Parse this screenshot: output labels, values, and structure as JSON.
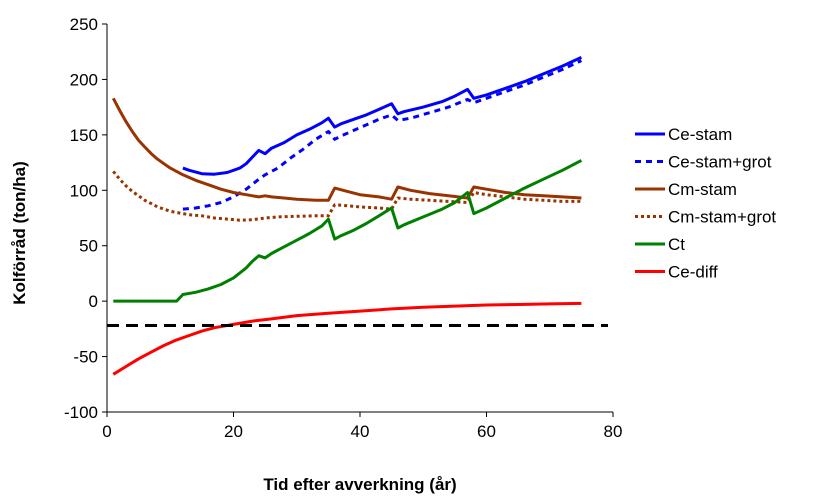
{
  "chart_data": {
    "type": "line",
    "title": "",
    "xlabel": "Tid efter avverkning (år)",
    "ylabel": "Kolförråd (ton/ha)",
    "xlim": [
      0,
      80
    ],
    "ylim": [
      -100,
      250
    ],
    "xticks": [
      "0",
      "20",
      "40",
      "60",
      "80"
    ],
    "yticks": [
      "250",
      "200",
      "150",
      "100",
      "50",
      "0",
      "-50",
      "-100"
    ],
    "xtick_values": [
      0,
      20,
      40,
      60,
      80
    ],
    "ytick_values": [
      250,
      200,
      150,
      100,
      50,
      0,
      -50,
      -100
    ],
    "grid": false,
    "legend_position": "right",
    "reference_line": {
      "y": -22,
      "color": "#000000",
      "style": "dashed"
    },
    "series": [
      {
        "name": "Ce-stam",
        "color": "#0000ff",
        "dash": "solid",
        "points": [
          [
            12,
            120
          ],
          [
            13,
            118
          ],
          [
            15,
            115
          ],
          [
            17,
            114.5
          ],
          [
            19,
            116
          ],
          [
            21,
            120
          ],
          [
            22,
            124
          ],
          [
            23,
            130
          ],
          [
            24,
            136
          ],
          [
            25,
            133
          ],
          [
            26,
            138
          ],
          [
            28,
            143
          ],
          [
            30,
            150
          ],
          [
            32,
            155
          ],
          [
            34,
            161
          ],
          [
            35,
            165
          ],
          [
            36,
            157
          ],
          [
            37,
            160
          ],
          [
            39,
            164
          ],
          [
            41,
            168
          ],
          [
            43,
            173
          ],
          [
            45,
            178
          ],
          [
            46,
            169
          ],
          [
            47,
            171
          ],
          [
            50,
            175
          ],
          [
            53,
            180
          ],
          [
            55,
            185
          ],
          [
            57,
            191
          ],
          [
            58,
            183
          ],
          [
            60,
            186
          ],
          [
            63,
            192
          ],
          [
            66,
            198
          ],
          [
            69,
            205
          ],
          [
            72,
            212
          ],
          [
            75,
            220
          ]
        ]
      },
      {
        "name": "Ce-stam+grot",
        "color": "#0000ff",
        "dash": "dashed",
        "points": [
          [
            12,
            83
          ],
          [
            14,
            84
          ],
          [
            16,
            86
          ],
          [
            18,
            89
          ],
          [
            20,
            94
          ],
          [
            22,
            101
          ],
          [
            24,
            110
          ],
          [
            25,
            114
          ],
          [
            27,
            120
          ],
          [
            29,
            129
          ],
          [
            31,
            137
          ],
          [
            33,
            146
          ],
          [
            35,
            153
          ],
          [
            36,
            146
          ],
          [
            37,
            149
          ],
          [
            39,
            154
          ],
          [
            41,
            159
          ],
          [
            43,
            164
          ],
          [
            45,
            168
          ],
          [
            46,
            163
          ],
          [
            48,
            165
          ],
          [
            51,
            170
          ],
          [
            54,
            175
          ],
          [
            57,
            182
          ],
          [
            58,
            179
          ],
          [
            60,
            183
          ],
          [
            63,
            189
          ],
          [
            66,
            195
          ],
          [
            69,
            202
          ],
          [
            72,
            209
          ],
          [
            75,
            217
          ]
        ]
      },
      {
        "name": "Cm-stam",
        "color": "#993300",
        "dash": "solid",
        "points": [
          [
            1,
            183
          ],
          [
            2,
            172
          ],
          [
            3,
            162
          ],
          [
            4,
            153
          ],
          [
            5,
            145
          ],
          [
            6,
            139
          ],
          [
            7,
            133
          ],
          [
            8,
            128
          ],
          [
            9,
            124
          ],
          [
            10,
            120
          ],
          [
            11,
            117
          ],
          [
            12,
            114
          ],
          [
            14,
            109
          ],
          [
            16,
            105
          ],
          [
            18,
            101
          ],
          [
            20,
            98
          ],
          [
            22,
            96
          ],
          [
            24,
            94
          ],
          [
            25,
            95
          ],
          [
            26,
            94
          ],
          [
            28,
            93
          ],
          [
            30,
            92
          ],
          [
            33,
            91
          ],
          [
            35,
            91
          ],
          [
            36,
            102
          ],
          [
            38,
            99
          ],
          [
            40,
            96
          ],
          [
            43,
            94
          ],
          [
            45,
            92
          ],
          [
            46,
            103
          ],
          [
            48,
            100
          ],
          [
            51,
            97
          ],
          [
            54,
            95
          ],
          [
            57,
            93
          ],
          [
            58,
            103
          ],
          [
            60,
            101
          ],
          [
            63,
            98
          ],
          [
            66,
            96
          ],
          [
            69,
            95
          ],
          [
            72,
            94
          ],
          [
            75,
            93
          ]
        ]
      },
      {
        "name": "Cm-stam+grot",
        "color": "#993300",
        "dash": "dotted",
        "points": [
          [
            1,
            117
          ],
          [
            2,
            110
          ],
          [
            3,
            104
          ],
          [
            4,
            99
          ],
          [
            5,
            95
          ],
          [
            6,
            91
          ],
          [
            7,
            88
          ],
          [
            8,
            85
          ],
          [
            9,
            83
          ],
          [
            10,
            81
          ],
          [
            11,
            80
          ],
          [
            13,
            78
          ],
          [
            15,
            77
          ],
          [
            17,
            75
          ],
          [
            19,
            74
          ],
          [
            21,
            73
          ],
          [
            23,
            73.5
          ],
          [
            25,
            75
          ],
          [
            27,
            76
          ],
          [
            30,
            76.5
          ],
          [
            33,
            77
          ],
          [
            35,
            77
          ],
          [
            36,
            87
          ],
          [
            38,
            86
          ],
          [
            40,
            85
          ],
          [
            43,
            84
          ],
          [
            45,
            83
          ],
          [
            46,
            93
          ],
          [
            48,
            92
          ],
          [
            51,
            91
          ],
          [
            54,
            90
          ],
          [
            57,
            89
          ],
          [
            58,
            98
          ],
          [
            60,
            96
          ],
          [
            63,
            94
          ],
          [
            66,
            92
          ],
          [
            69,
            91
          ],
          [
            72,
            90
          ],
          [
            75,
            90
          ]
        ]
      },
      {
        "name": "Ct",
        "color": "#008000",
        "dash": "solid",
        "points": [
          [
            1,
            0
          ],
          [
            5,
            0
          ],
          [
            10,
            0
          ],
          [
            11,
            0
          ],
          [
            12,
            6
          ],
          [
            14,
            8
          ],
          [
            16,
            11
          ],
          [
            18,
            15
          ],
          [
            20,
            21
          ],
          [
            22,
            30
          ],
          [
            23,
            36
          ],
          [
            24,
            41
          ],
          [
            25,
            39
          ],
          [
            26,
            43
          ],
          [
            28,
            49
          ],
          [
            30,
            55
          ],
          [
            32,
            61
          ],
          [
            34,
            68
          ],
          [
            35,
            74
          ],
          [
            36,
            56
          ],
          [
            37,
            59
          ],
          [
            39,
            64
          ],
          [
            41,
            70
          ],
          [
            43,
            77
          ],
          [
            45,
            84
          ],
          [
            46,
            66
          ],
          [
            47,
            69
          ],
          [
            50,
            76
          ],
          [
            53,
            83
          ],
          [
            55,
            89
          ],
          [
            57,
            98
          ],
          [
            58,
            79
          ],
          [
            60,
            84
          ],
          [
            63,
            93
          ],
          [
            66,
            102
          ],
          [
            69,
            110
          ],
          [
            72,
            118
          ],
          [
            75,
            127
          ]
        ]
      },
      {
        "name": "Ce-diff",
        "color": "#ff0000",
        "dash": "solid",
        "points": [
          [
            1,
            -66
          ],
          [
            3,
            -59
          ],
          [
            5,
            -52
          ],
          [
            7,
            -46
          ],
          [
            9,
            -40
          ],
          [
            11,
            -35
          ],
          [
            13,
            -31
          ],
          [
            15,
            -27
          ],
          [
            17,
            -24
          ],
          [
            20,
            -21
          ],
          [
            23,
            -18
          ],
          [
            26,
            -16
          ],
          [
            30,
            -13
          ],
          [
            35,
            -11
          ],
          [
            40,
            -9
          ],
          [
            45,
            -7
          ],
          [
            50,
            -5.5
          ],
          [
            55,
            -4.5
          ],
          [
            60,
            -3.5
          ],
          [
            65,
            -3
          ],
          [
            70,
            -2.5
          ],
          [
            75,
            -2
          ]
        ]
      }
    ]
  }
}
